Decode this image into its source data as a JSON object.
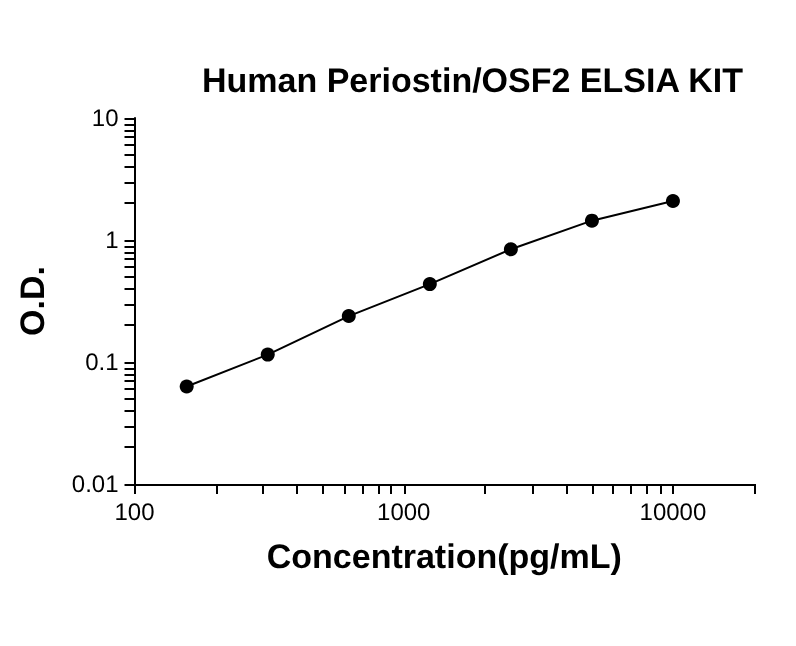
{
  "chart_data": {
    "type": "line",
    "title": "Human Periostin/OSF2 ELSIA KIT",
    "xlabel": "Concentration(pg/mL)",
    "ylabel": "O.D.",
    "x": [
      156.25,
      312.5,
      625,
      1250,
      2500,
      5000,
      10000
    ],
    "series": [
      {
        "color": "#000000",
        "values": [
          0.063,
          0.115,
          0.238,
          0.435,
          0.84,
          1.44,
          2.09
        ]
      }
    ],
    "log": "xy",
    "marker": "circle",
    "line_style": "solid",
    "grid": false,
    "xlim": [
      100,
      20000
    ],
    "xticks": [
      100,
      {
        "value": 200,
        "label": null
      },
      {
        "value": 300,
        "label": null
      },
      {
        "value": 400,
        "label": null
      },
      {
        "value": 500,
        "label": null
      },
      {
        "value": 600,
        "label": null
      },
      {
        "value": 700,
        "label": null
      },
      {
        "value": 800,
        "label": null
      },
      {
        "value": 900,
        "label": null
      },
      1000,
      {
        "value": 2000,
        "label": null
      },
      {
        "value": 3000,
        "label": null
      },
      {
        "value": 4000,
        "label": null
      },
      {
        "value": 5000,
        "label": null
      },
      {
        "value": 6000,
        "label": null
      },
      {
        "value": 7000,
        "label": null
      },
      {
        "value": 8000,
        "label": null
      },
      {
        "value": 9000,
        "label": null
      },
      10000,
      {
        "value": 20000,
        "label": null
      }
    ],
    "ylim": [
      0.01,
      10
    ],
    "yticks": [
      0.01,
      {
        "value": 0.02,
        "label": null
      },
      {
        "value": 0.03,
        "label": null
      },
      {
        "value": 0.04,
        "label": null
      },
      {
        "value": 0.05,
        "label": null
      },
      {
        "value": 0.06,
        "label": null
      },
      {
        "value": 0.07,
        "label": null
      },
      {
        "value": 0.08,
        "label": null
      },
      {
        "value": 0.09,
        "label": null
      },
      0.1,
      {
        "value": 0.2,
        "label": null
      },
      {
        "value": 0.3,
        "label": null
      },
      {
        "value": 0.4,
        "label": null
      },
      {
        "value": 0.5,
        "label": null
      },
      {
        "value": 0.6,
        "label": null
      },
      {
        "value": 0.7,
        "label": null
      },
      {
        "value": 0.8,
        "label": null
      },
      {
        "value": 0.9,
        "label": null
      },
      1,
      {
        "value": 2,
        "label": null
      },
      {
        "value": 3,
        "label": null
      },
      {
        "value": 4,
        "label": null
      },
      {
        "value": 5,
        "label": null
      },
      {
        "value": 6,
        "label": null
      },
      {
        "value": 7,
        "label": null
      },
      {
        "value": 8,
        "label": null
      },
      {
        "value": 9,
        "label": null
      },
      10
    ]
  }
}
